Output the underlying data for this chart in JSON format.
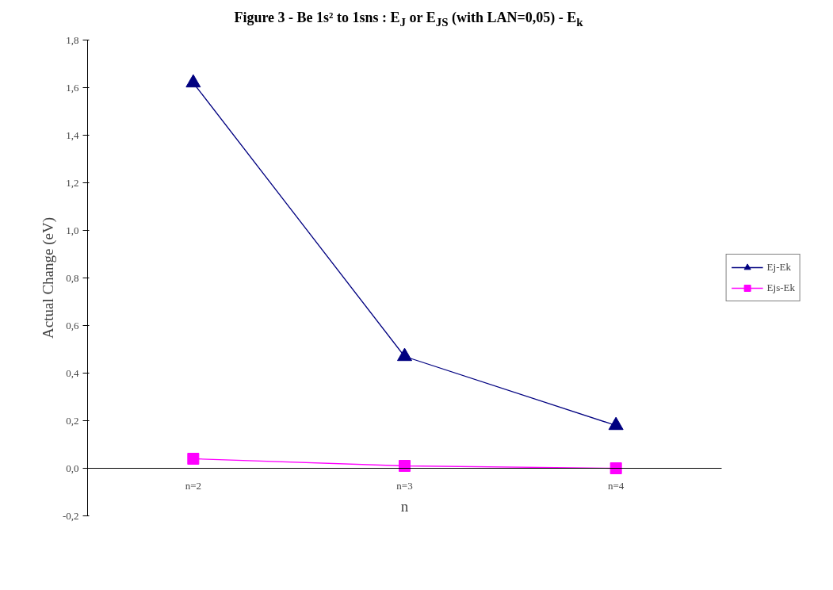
{
  "chart_data": {
    "type": "line",
    "title": "Figure 3 - Be 1s² to 1sns : E$_{J}$ or E$_{JS}$ (with LAN=0,05) - E$_{k}$",
    "xlabel": "n",
    "ylabel": "Actual Change (eV)",
    "categories": [
      "n=2",
      "n=3",
      "n=4"
    ],
    "series": [
      {
        "name": "Ej-Ek",
        "color": "#000080",
        "marker": "triangle",
        "values": [
          1.62,
          0.47,
          0.18
        ]
      },
      {
        "name": "Ejs-Ek",
        "color": "#ff00ff",
        "marker": "square",
        "values": [
          0.04,
          0.01,
          0.0
        ]
      }
    ],
    "ylim": [
      -0.2,
      1.8
    ],
    "yticks": [
      {
        "value": -0.2,
        "label": "-0,2"
      },
      {
        "value": 0,
        "label": "0,0"
      },
      {
        "value": 0.2,
        "label": "0,2"
      },
      {
        "value": 0.4,
        "label": "0,4"
      },
      {
        "value": 0.6,
        "label": "0,6"
      },
      {
        "value": 0.8,
        "label": "0,8"
      },
      {
        "value": 1.0,
        "label": "1,0"
      },
      {
        "value": 1.2,
        "label": "1,2"
      },
      {
        "value": 1.4,
        "label": "1,4"
      },
      {
        "value": 1.6,
        "label": "1,6"
      },
      {
        "value": 1.8,
        "label": "1,8"
      }
    ],
    "legend": "right",
    "grid": false
  }
}
